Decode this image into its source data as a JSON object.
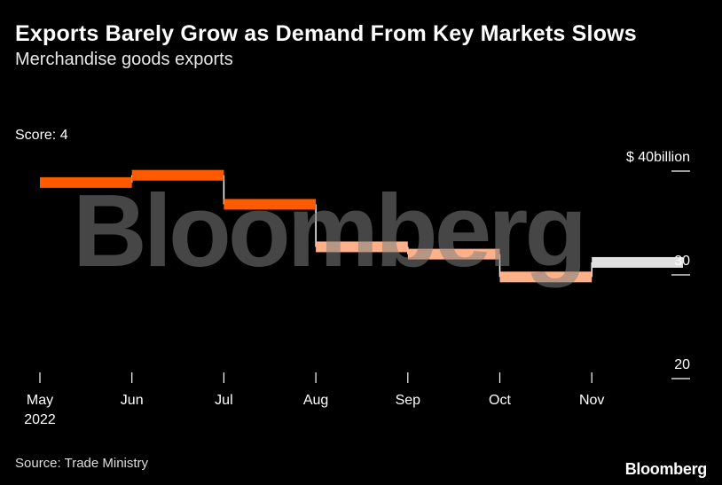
{
  "header": {
    "title": "Exports Barely Grow as Demand From Key Markets Slows",
    "subtitle": "Merchandise goods exports"
  },
  "score_label": "Score: 4",
  "footer": {
    "source": "Source: Trade Ministry",
    "brand": "Bloomberg"
  },
  "watermark": "Bloomberg",
  "chart_data": {
    "type": "line",
    "title": "Exports Barely Grow as Demand From Key Markets Slows",
    "subtitle": "Merchandise goods exports",
    "x_tick_labels": [
      "May",
      "Jun",
      "Jul",
      "Aug",
      "Sep",
      "Oct",
      "Nov"
    ],
    "x_year_label": "2022",
    "y_tick_labels": [
      "$ 40billion",
      "30",
      "20"
    ],
    "y_ticks": [
      40,
      30,
      20
    ],
    "ylim": [
      20,
      40
    ],
    "y_unit": "billion USD",
    "series": [
      {
        "periods": [
          "May",
          "Jun",
          "Jul",
          "Aug",
          "Sep",
          "Oct",
          "Nov"
        ],
        "values": [
          38.9,
          39.6,
          36.8,
          32.7,
          32.0,
          29.8,
          31.2
        ],
        "step_colors": [
          "#ff5a00",
          "#ff5a00",
          "#ff5a00",
          "#ffb088",
          "#ffb088",
          "#ffb088",
          "#e0e0e0"
        ]
      }
    ],
    "grid": false,
    "legend": "none"
  }
}
